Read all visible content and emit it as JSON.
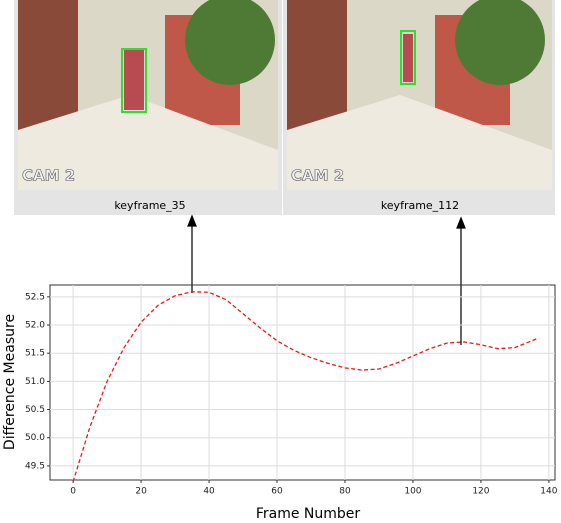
{
  "images": [
    {
      "caption": "keyframe_35",
      "overlay": "CAM 2"
    },
    {
      "caption": "keyframe_112",
      "overlay": "CAM 2"
    }
  ],
  "chart_data": {
    "type": "line",
    "xlabel": "Frame Number",
    "ylabel": "Difference Measure",
    "x": [
      0,
      5,
      10,
      15,
      20,
      25,
      30,
      35,
      40,
      45,
      50,
      55,
      60,
      65,
      70,
      75,
      80,
      85,
      90,
      95,
      100,
      105,
      110,
      115,
      120,
      125,
      130,
      135,
      137
    ],
    "values": [
      49.22,
      50.2,
      51.0,
      51.6,
      52.05,
      52.35,
      52.52,
      52.59,
      52.58,
      52.45,
      52.2,
      51.95,
      51.72,
      51.55,
      51.42,
      51.32,
      51.24,
      51.2,
      51.22,
      51.32,
      51.45,
      51.58,
      51.68,
      51.7,
      51.65,
      51.58,
      51.6,
      51.72,
      51.77
    ],
    "color": "#e8191c",
    "line_style": "dashed",
    "grid": true,
    "xlim": [
      -6.8,
      141.8
    ],
    "ylim": [
      49.25,
      52.71
    ],
    "xticks": [
      0,
      20,
      40,
      60,
      80,
      100,
      120,
      140
    ],
    "yticks": [
      49.5,
      {
        "value": 50,
        "label": "50.0"
      },
      50.5,
      {
        "value": 51,
        "label": "51.0"
      },
      51.5,
      {
        "value": 52,
        "label": "52.0"
      },
      52.5
    ]
  }
}
